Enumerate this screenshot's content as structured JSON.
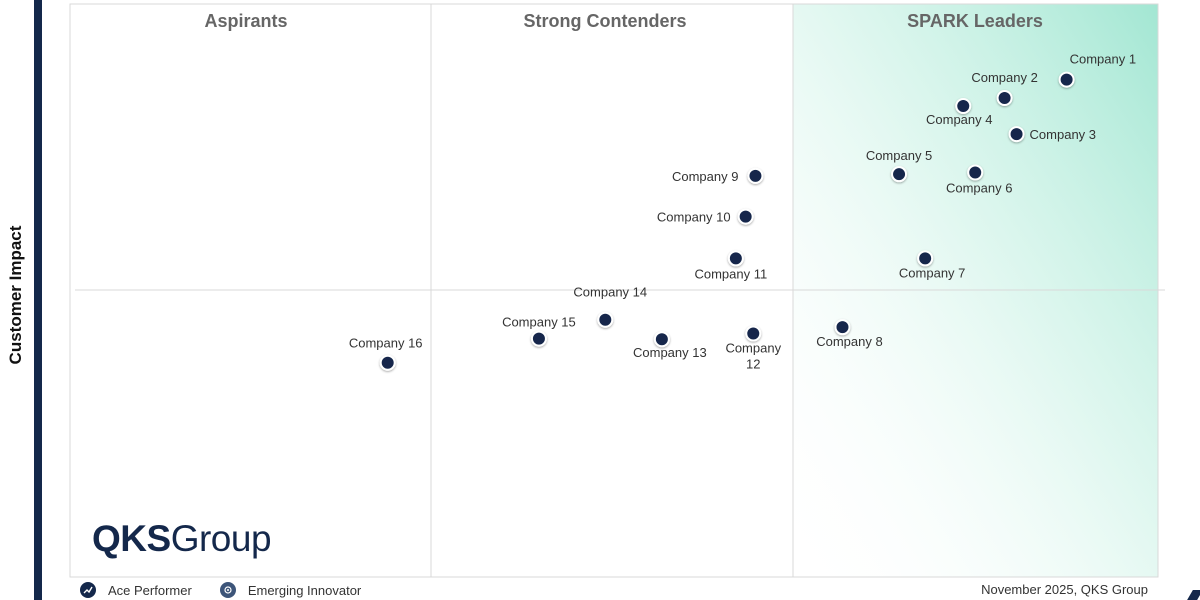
{
  "chart_data": {
    "type": "scatter",
    "ylabel": "Customer Impact",
    "xlabel": "",
    "xlim": [
      0,
      100
    ],
    "ylim": [
      0,
      100
    ],
    "grid": true,
    "quadrants": [
      "Aspirants",
      "Strong Contenders",
      "SPARK Leaders"
    ],
    "points": [
      {
        "label": "Company 1",
        "x": 91.6,
        "y": 86.8
      },
      {
        "label": "Company 2",
        "x": 85.9,
        "y": 83.6
      },
      {
        "label": "Company 3",
        "x": 87.0,
        "y": 77.3
      },
      {
        "label": "Company 4",
        "x": 82.1,
        "y": 82.2
      },
      {
        "label": "Company 5",
        "x": 76.2,
        "y": 70.3
      },
      {
        "label": "Company 6",
        "x": 83.2,
        "y": 70.6
      },
      {
        "label": "Company 7",
        "x": 78.6,
        "y": 55.6
      },
      {
        "label": "Company 8",
        "x": 71.0,
        "y": 43.6
      },
      {
        "label": "Company 9",
        "x": 63.0,
        "y": 70.0
      },
      {
        "label": "Company 10",
        "x": 62.1,
        "y": 62.9
      },
      {
        "label": "Company 11",
        "x": 61.2,
        "y": 55.6
      },
      {
        "label": "Company 12",
        "x": 62.8,
        "y": 42.5
      },
      {
        "label": "Company 13",
        "x": 54.4,
        "y": 41.5
      },
      {
        "label": "Company 14",
        "x": 49.2,
        "y": 44.9
      },
      {
        "label": "Company 15",
        "x": 43.1,
        "y": 41.6
      },
      {
        "label": "Company 16",
        "x": 29.2,
        "y": 37.4
      }
    ]
  },
  "logo": {
    "bold": "QKS",
    "light": "Group"
  },
  "legend": {
    "ace": "Ace Performer",
    "emerging": "Emerging Innovator"
  },
  "footer": {
    "date": "November 2025, QKS Group"
  },
  "colors": {
    "point": "#14284b",
    "leader_zone": "#56d2ae",
    "frame": "#d9d9d9"
  }
}
